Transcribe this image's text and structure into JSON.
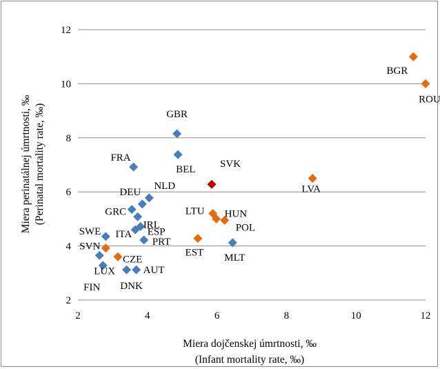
{
  "chart_data": {
    "type": "scatter",
    "xlabel": "Miera dojčenskej úmrtnosti, ‰",
    "xlabel_sub": "(Infant mortality rate, ‰)",
    "ylabel": "Miera perinatálnej úmrtnosti, ‰",
    "ylabel_sub": "(Perinatal mortality rate, ‰)",
    "xlim": [
      2,
      12
    ],
    "ylim": [
      2,
      12
    ],
    "xticks": [
      2,
      4,
      6,
      8,
      10,
      12
    ],
    "yticks": [
      2,
      4,
      6,
      8,
      10,
      12
    ],
    "grid": "horizontal",
    "colors": {
      "blue": "#4a7ebb",
      "orange": "#e46c0a",
      "red": "#c00000"
    },
    "points": [
      {
        "label": "BGR",
        "x": 11.65,
        "y": 11.0,
        "color": "orange"
      },
      {
        "label": "ROU",
        "x": 12.0,
        "y": 10.0,
        "color": "orange"
      },
      {
        "label": "GBR",
        "x": 4.85,
        "y": 8.15,
        "color": "blue"
      },
      {
        "label": "BEL",
        "x": 4.88,
        "y": 7.38,
        "color": "blue"
      },
      {
        "label": "FRA",
        "x": 3.6,
        "y": 6.92,
        "color": "blue"
      },
      {
        "label": "SVK",
        "x": 5.85,
        "y": 6.28,
        "color": "red"
      },
      {
        "label": "LVA",
        "x": 8.75,
        "y": 6.5,
        "color": "orange"
      },
      {
        "label": "NLD",
        "x": 4.05,
        "y": 5.78,
        "color": "blue"
      },
      {
        "label": "DEU",
        "x": 3.85,
        "y": 5.55,
        "color": "blue"
      },
      {
        "label": "GRC",
        "x": 3.55,
        "y": 5.35,
        "color": "blue"
      },
      {
        "label": "IRL",
        "x": 3.72,
        "y": 5.08,
        "color": "blue"
      },
      {
        "label": "ESP",
        "x": 3.8,
        "y": 4.72,
        "color": "blue"
      },
      {
        "label": "ITA",
        "x": 3.65,
        "y": 4.6,
        "color": "blue"
      },
      {
        "label": "PRT",
        "x": 3.9,
        "y": 4.22,
        "color": "blue"
      },
      {
        "label": "SWE",
        "x": 2.8,
        "y": 4.35,
        "color": "blue"
      },
      {
        "label": "SVN",
        "x": 2.8,
        "y": 3.92,
        "color": "orange"
      },
      {
        "label": "LUX",
        "x": 2.62,
        "y": 3.65,
        "color": "blue"
      },
      {
        "label": "FIN",
        "x": 2.72,
        "y": 3.28,
        "color": "blue"
      },
      {
        "label": "CZE",
        "x": 3.15,
        "y": 3.6,
        "color": "orange"
      },
      {
        "label": "DNK",
        "x": 3.4,
        "y": 3.12,
        "color": "blue"
      },
      {
        "label": "AUT",
        "x": 3.68,
        "y": 3.12,
        "color": "blue"
      },
      {
        "label": "LTU",
        "x": 5.88,
        "y": 5.2,
        "color": "orange"
      },
      {
        "label": "HUN",
        "x": 5.98,
        "y": 5.0,
        "color": "orange"
      },
      {
        "label": "POL",
        "x": 6.22,
        "y": 4.95,
        "color": "orange"
      },
      {
        "label": "EST",
        "x": 5.45,
        "y": 4.28,
        "color": "orange"
      },
      {
        "label": "MLT",
        "x": 6.45,
        "y": 4.12,
        "color": "blue"
      }
    ]
  }
}
